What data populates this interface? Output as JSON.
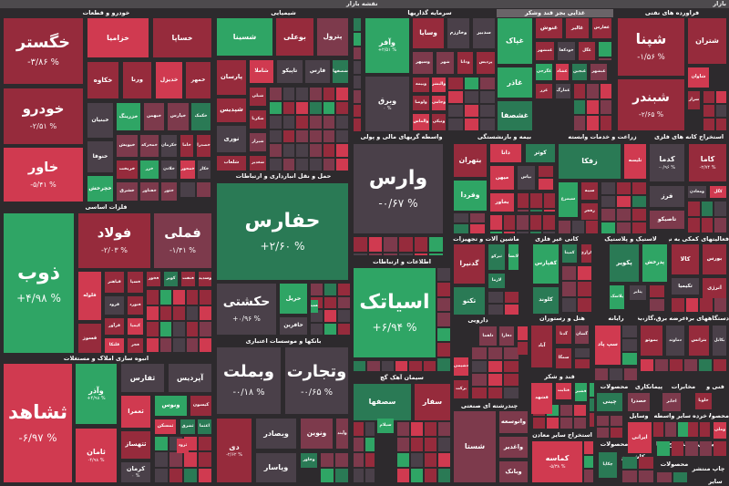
{
  "header": {
    "title": "نقشه بازار",
    "right_label": "بازار"
  },
  "tones": {
    "red": "#d03a50",
    "darkred": "#962b3c",
    "mauve": "#7d3a4c",
    "gray": "#4a4049",
    "green": "#2fa565",
    "dkgreen": "#2a7a55"
  },
  "sectors": [
    {
      "name": "خودرو و قطعات"
    },
    {
      "name": "شیمیایی"
    },
    {
      "name": "سرمایه گذاریها"
    },
    {
      "name": "غذایی بجز قند وشکر"
    },
    {
      "name": "فراورده های نفتی"
    },
    {
      "name": "حمل و نقل انبارداری و ارتباطات"
    },
    {
      "name": "فلزات اساسی"
    },
    {
      "name": "واسطه گریهای مالی و پولی"
    },
    {
      "name": "بیمه و بازنشستگی"
    },
    {
      "name": "زراعت و خدمات وابسته"
    },
    {
      "name": "استخراج کانه های فلزی"
    },
    {
      "name": "انبوه سازی املاک و مستغلات"
    },
    {
      "name": "بانکها و موسسات اعتباری"
    },
    {
      "name": "اطلاعات و ارتباطات"
    },
    {
      "name": "ماشین آلات و تجهیزات"
    },
    {
      "name": "کانی غیر فلزی"
    },
    {
      "name": "لاستیک و پلاستیک"
    },
    {
      "name": "فعالیتهای کمکی به نهاد"
    },
    {
      "name": "سیمان آهک گچ"
    },
    {
      "name": "دارویی"
    },
    {
      "name": "هتل و رستوران"
    },
    {
      "name": "رایانه"
    },
    {
      "name": "عرضه برق،گاز،بخار"
    },
    {
      "name": "دستگاههای برقی"
    },
    {
      "name": "چندرشته ای صنعتی"
    },
    {
      "name": "قند و شکر"
    },
    {
      "name": "استخراج سایر معادن"
    },
    {
      "name": "محصولات"
    },
    {
      "name": "پیمانکاری"
    },
    {
      "name": "مخابرات"
    },
    {
      "name": "فنی و"
    },
    {
      "name": "وسایل"
    },
    {
      "name": "سایر واسطه"
    },
    {
      "name": "خرده"
    },
    {
      "name": "محصولا"
    },
    {
      "name": "استخراج زغال"
    },
    {
      "name": "محصولات"
    },
    {
      "name": "کاشی و"
    },
    {
      "name": "محصولات"
    },
    {
      "name": "فعالیتهای"
    },
    {
      "name": "چاپ منتشر"
    },
    {
      "name": "سایر"
    }
  ],
  "tiles": [
    {
      "name": "خگستر",
      "change": "-۳/۸۶ %",
      "tone": "darkred"
    },
    {
      "name": "خودرو",
      "change": "-۲/۵۱ %",
      "tone": "darkred"
    },
    {
      "name": "خاور",
      "change": "-۵/۴۱ %",
      "tone": "red"
    },
    {
      "name": "خزامیا",
      "change": "",
      "tone": "red"
    },
    {
      "name": "خساپا",
      "change": "",
      "tone": "darkred"
    },
    {
      "name": "خکاوه",
      "change": "",
      "tone": "darkred"
    },
    {
      "name": "ورنا",
      "change": "",
      "tone": "darkred"
    },
    {
      "name": "خدیزل",
      "change": "",
      "tone": "red"
    },
    {
      "name": "خمهر",
      "change": "",
      "tone": "darkred"
    },
    {
      "name": "خبنیان",
      "change": "",
      "tone": "gray"
    },
    {
      "name": "خزرینگ",
      "change": "",
      "tone": "green"
    },
    {
      "name": "خبهمن",
      "change": "",
      "tone": "mauve"
    },
    {
      "name": "خپارس",
      "change": "",
      "tone": "mauve"
    },
    {
      "name": "خکمک",
      "change": "",
      "tone": "dkgreen"
    },
    {
      "name": "خنوفا",
      "change": "",
      "tone": "gray"
    },
    {
      "name": "خپویش",
      "change": "",
      "tone": "mauve"
    },
    {
      "name": "خمحرکه",
      "change": "",
      "tone": "mauve"
    },
    {
      "name": "خکرمان",
      "change": "",
      "tone": "gray"
    },
    {
      "name": "خاما",
      "change": "",
      "tone": "darkred"
    },
    {
      "name": "خصدرا",
      "change": "",
      "tone": "darkred"
    },
    {
      "name": "خریخت",
      "change": "",
      "tone": "darkred"
    },
    {
      "name": "خزر",
      "change": "",
      "tone": "green"
    },
    {
      "name": "خلادن",
      "change": "",
      "tone": "gray"
    },
    {
      "name": "خمحور",
      "change": "",
      "tone": "red"
    },
    {
      "name": "خکار",
      "change": "",
      "tone": "gray"
    },
    {
      "name": "خچرخش",
      "change": "",
      "tone": "green"
    },
    {
      "name": "خشرق",
      "change": "",
      "tone": "mauve"
    },
    {
      "name": "خفناور",
      "change": "",
      "tone": "mauve"
    },
    {
      "name": "ختور",
      "change": "",
      "tone": "mauve"
    },
    {
      "name": "شسینا",
      "change": "",
      "tone": "green"
    },
    {
      "name": "بوعلی",
      "change": "",
      "tone": "darkred"
    },
    {
      "name": "پترول",
      "change": "",
      "tone": "mauve"
    },
    {
      "name": "شصفها",
      "change": "",
      "tone": "dkgreen"
    },
    {
      "name": "پارسان",
      "change": "",
      "tone": "darkred"
    },
    {
      "name": "شاملا",
      "change": "",
      "tone": "red"
    },
    {
      "name": "تاپیکو",
      "change": "",
      "tone": "gray"
    },
    {
      "name": "فارس",
      "change": "",
      "tone": "gray"
    },
    {
      "name": "شپدیس",
      "change": "",
      "tone": "darkred"
    },
    {
      "name": "شبلی",
      "change": "",
      "tone": "darkred"
    },
    {
      "name": "شکربا",
      "change": "",
      "tone": "darkred"
    },
    {
      "name": "نوری",
      "change": "",
      "tone": "gray"
    },
    {
      "name": "شیراز",
      "change": "",
      "tone": "mauve"
    },
    {
      "name": "شلعاب",
      "change": "",
      "tone": "darkred"
    },
    {
      "name": "شغدیر",
      "change": "",
      "tone": "darkred"
    },
    {
      "name": "حفارس",
      "change": "+۲/۶۰ %",
      "tone": "dkgreen"
    },
    {
      "name": "حکشتی",
      "change": "+۰/۹۶ %",
      "tone": "gray"
    },
    {
      "name": "حریل",
      "change": "",
      "tone": "green"
    },
    {
      "name": "حافرین",
      "change": "",
      "tone": "gray"
    },
    {
      "name": "حسینا",
      "change": "",
      "tone": "green"
    },
    {
      "name": "وآفر",
      "change": "+۲/۵۱ %",
      "tone": "green"
    },
    {
      "name": "وبرق",
      "change": "۰ %",
      "tone": "gray"
    },
    {
      "name": "وسایا",
      "change": "",
      "tone": "darkred"
    },
    {
      "name": "وخارزم",
      "change": "",
      "tone": "gray"
    },
    {
      "name": "سدبیر",
      "change": "",
      "tone": "gray"
    },
    {
      "name": "وسپهر",
      "change": "",
      "tone": "mauve"
    },
    {
      "name": "شهر",
      "change": "",
      "tone": "mauve"
    },
    {
      "name": "ودانا",
      "change": "",
      "tone": "darkred"
    },
    {
      "name": "پردیس",
      "change": "",
      "tone": "darkred"
    },
    {
      "name": "وبیمه",
      "change": "",
      "tone": "darkred"
    },
    {
      "name": "والبشر",
      "change": "",
      "tone": "red"
    },
    {
      "name": "ولوصا",
      "change": "",
      "tone": "darkred"
    },
    {
      "name": "وجامی",
      "change": "",
      "tone": "red"
    },
    {
      "name": "والماس",
      "change": "",
      "tone": "red"
    },
    {
      "name": "ونیکی",
      "change": "",
      "tone": "darkred"
    },
    {
      "name": "غپاک",
      "change": "",
      "tone": "green"
    },
    {
      "name": "غاذر",
      "change": "",
      "tone": "green"
    },
    {
      "name": "غشصفا",
      "change": "",
      "tone": "dkgreen"
    },
    {
      "name": "غنوش",
      "change": "",
      "tone": "darkred"
    },
    {
      "name": "غالبر",
      "change": "",
      "tone": "darkred"
    },
    {
      "name": "غفارس",
      "change": "",
      "tone": "darkred"
    },
    {
      "name": "غمشهر",
      "change": "",
      "tone": "darkred"
    },
    {
      "name": "خودکفا",
      "change": "",
      "tone": "gray"
    },
    {
      "name": "غگل",
      "change": "",
      "tone": "darkred"
    },
    {
      "name": "غگرجی",
      "change": "",
      "tone": "green"
    },
    {
      "name": "غشاد",
      "change": "",
      "tone": "red"
    },
    {
      "name": "غبجین",
      "change": "",
      "tone": "dkgreen"
    },
    {
      "name": "غبشهر",
      "change": "",
      "tone": "mauve"
    },
    {
      "name": "غزر",
      "change": "",
      "tone": "darkred"
    },
    {
      "name": "غمارگ",
      "change": "",
      "tone": "gray"
    },
    {
      "name": "شپنا",
      "change": "-۱/۵۶ %",
      "tone": "darkred"
    },
    {
      "name": "شبندر",
      "change": "-۲/۶۵ %",
      "tone": "darkred"
    },
    {
      "name": "شتران",
      "change": "",
      "tone": "darkred"
    },
    {
      "name": "شاوان",
      "change": "",
      "tone": "red"
    },
    {
      "name": "شراز",
      "change": "",
      "tone": "darkred"
    },
    {
      "name": "وارس",
      "change": "-۰/۶۷ %",
      "tone": "gray"
    },
    {
      "name": "بتهران",
      "change": "",
      "tone": "darkred"
    },
    {
      "name": "دانا",
      "change": "",
      "tone": "red"
    },
    {
      "name": "کوثر",
      "change": "",
      "tone": "dkgreen"
    },
    {
      "name": "میهن",
      "change": "",
      "tone": "red"
    },
    {
      "name": "بپاس",
      "change": "",
      "tone": "gray"
    },
    {
      "name": "وفردا",
      "change": "",
      "tone": "green"
    },
    {
      "name": "بخاور",
      "change": "",
      "tone": "red"
    },
    {
      "name": "زفکا",
      "change": "",
      "tone": "dkgreen"
    },
    {
      "name": "تلیسه",
      "change": "",
      "tone": "red"
    },
    {
      "name": "سیمرغ",
      "change": "",
      "tone": "green"
    },
    {
      "name": "سیبه",
      "change": "",
      "tone": "darkred"
    },
    {
      "name": "زفجر",
      "change": "",
      "tone": "darkred"
    },
    {
      "name": "کدما",
      "change": "-۰/۹۶ %",
      "tone": "gray"
    },
    {
      "name": "کاما",
      "change": "-۲/۷۴ %",
      "tone": "darkred"
    },
    {
      "name": "فرز",
      "change": "",
      "tone": "gray"
    },
    {
      "name": "ومعادن",
      "change": "",
      "tone": "gray"
    },
    {
      "name": "کگل",
      "change": "",
      "tone": "red"
    },
    {
      "name": "تاصیکو",
      "change": "",
      "tone": "mauve"
    },
    {
      "name": "ذوب",
      "change": "+۴/۹۸ %",
      "tone": "green"
    },
    {
      "name": "فولاد",
      "change": "-۲/۰۳ %",
      "tone": "darkred"
    },
    {
      "name": "فملی",
      "change": "-۱/۴۱ %",
      "tone": "mauve"
    },
    {
      "name": "فلوله",
      "change": "",
      "tone": "red"
    },
    {
      "name": "فباهنر",
      "change": "",
      "tone": "darkred"
    },
    {
      "name": "فسپا",
      "change": "",
      "tone": "darkred"
    },
    {
      "name": "فخوز",
      "change": "",
      "tone": "darkred"
    },
    {
      "name": "کویر",
      "change": "",
      "tone": "dkgreen"
    },
    {
      "name": "فنفت",
      "change": "",
      "tone": "darkred"
    },
    {
      "name": "وسدید",
      "change": "",
      "tone": "darkred"
    },
    {
      "name": "فرود",
      "change": "",
      "tone": "gray"
    },
    {
      "name": "فنورد",
      "change": "",
      "tone": "darkred"
    },
    {
      "name": "فسوز",
      "change": "",
      "tone": "darkred"
    },
    {
      "name": "فرآور",
      "change": "",
      "tone": "darkred"
    },
    {
      "name": "کیمیا",
      "change": "",
      "tone": "red"
    },
    {
      "name": "فلنکا",
      "change": "",
      "tone": "red"
    },
    {
      "name": "فجر",
      "change": "",
      "tone": "darkred"
    },
    {
      "name": "ثشاهد",
      "change": "-۶/۹۷ %",
      "tone": "red"
    },
    {
      "name": "وآذر",
      "change": "+۴/۹۸ %",
      "tone": "green"
    },
    {
      "name": "ثامان",
      "change": "-۴/۹۸ %",
      "tone": "red"
    },
    {
      "name": "ثفارس",
      "change": "",
      "tone": "gray"
    },
    {
      "name": "آپردیس",
      "change": "",
      "tone": "gray"
    },
    {
      "name": "ثعمرا",
      "change": "",
      "tone": "red"
    },
    {
      "name": "ونوس",
      "change": "",
      "tone": "green"
    },
    {
      "name": "کیسون",
      "change": "",
      "tone": "darkred"
    },
    {
      "name": "ثمسکن",
      "change": "",
      "tone": "red"
    },
    {
      "name": "ثشرق",
      "change": "",
      "tone": "dkgreen"
    },
    {
      "name": "اعتما",
      "change": "",
      "tone": "dkgreen"
    },
    {
      "name": "ثتهساز",
      "change": "",
      "tone": "darkred"
    },
    {
      "name": "ثرود",
      "change": "",
      "tone": "red"
    },
    {
      "name": "کرمان",
      "change": "۰ %",
      "tone": "gray"
    },
    {
      "name": "وبملت",
      "change": "-۰/۱۸ %",
      "tone": "gray"
    },
    {
      "name": "وتجارت",
      "change": "-۰/۶۵ %",
      "tone": "gray"
    },
    {
      "name": "دی",
      "change": "-۲/۶۲ %",
      "tone": "darkred"
    },
    {
      "name": "وبصادر",
      "change": "",
      "tone": "gray"
    },
    {
      "name": "ونوین",
      "change": "",
      "tone": "mauve"
    },
    {
      "name": "وآیند",
      "change": "",
      "tone": "mauve"
    },
    {
      "name": "وپاسار",
      "change": "",
      "tone": "gray"
    },
    {
      "name": "وخاور",
      "change": "",
      "tone": "dkgreen"
    },
    {
      "name": "اسیاتک",
      "change": "+۶/۹۴ %",
      "tone": "green"
    },
    {
      "name": "سصفها",
      "change": "",
      "tone": "dkgreen"
    },
    {
      "name": "سفار",
      "change": "",
      "tone": "darkred"
    },
    {
      "name": "سیلام",
      "change": "",
      "tone": "green"
    },
    {
      "name": "گدنیرا",
      "change": "",
      "tone": "darkred"
    },
    {
      "name": "تیرکو",
      "change": "",
      "tone": "dkgreen"
    },
    {
      "name": "لابسا",
      "change": "",
      "tone": "green"
    },
    {
      "name": "لازما",
      "change": "",
      "tone": "dkgreen"
    },
    {
      "name": "تکنو",
      "change": "",
      "tone": "dkgreen"
    },
    {
      "name": "کفپارس",
      "change": "",
      "tone": "green"
    },
    {
      "name": "کلوند",
      "change": "",
      "tone": "dkgreen"
    },
    {
      "name": "کمینا",
      "change": "",
      "tone": "dkgreen"
    },
    {
      "name": "کرازی",
      "change": "",
      "tone": "darkred"
    },
    {
      "name": "پکویر",
      "change": "",
      "tone": "dkgreen"
    },
    {
      "name": "پدرخش",
      "change": "",
      "tone": "green"
    },
    {
      "name": "پلاسک",
      "change": "",
      "tone": "green"
    },
    {
      "name": "پتایر",
      "change": "",
      "tone": "gray"
    },
    {
      "name": "کالا",
      "change": "",
      "tone": "darkred"
    },
    {
      "name": "بورس",
      "change": "",
      "tone": "darkred"
    },
    {
      "name": "تکیمیا",
      "change": "",
      "tone": "gray"
    },
    {
      "name": "انرژی",
      "change": "",
      "tone": "darkred"
    },
    {
      "name": "دلقما",
      "change": "",
      "tone": "mauve"
    },
    {
      "name": "دفارا",
      "change": "",
      "tone": "mauve"
    },
    {
      "name": "دشیمی",
      "change": "",
      "tone": "red"
    },
    {
      "name": "برکت",
      "change": "",
      "tone": "darkred"
    },
    {
      "name": "آباد",
      "change": "",
      "tone": "darkred"
    },
    {
      "name": "گدنا",
      "change": "",
      "tone": "darkred"
    },
    {
      "name": "گشان",
      "change": "",
      "tone": "mauve"
    },
    {
      "name": "سمگا",
      "change": "",
      "tone": "darkred"
    },
    {
      "name": "سپ پاد",
      "change": "",
      "tone": "red"
    },
    {
      "name": "بموتو",
      "change": "",
      "tone": "darkred"
    },
    {
      "name": "دماوند",
      "change": "",
      "tone": "gray"
    },
    {
      "name": "بترانس",
      "change": "",
      "tone": "darkred"
    },
    {
      "name": "بکابل",
      "change": "",
      "tone": "gray"
    },
    {
      "name": "قشهد",
      "change": "",
      "tone": "red"
    },
    {
      "name": "قثابت",
      "change": "",
      "tone": "red"
    },
    {
      "name": "قشیر",
      "change": "",
      "tone": "green"
    },
    {
      "name": "شستا",
      "change": "",
      "tone": "mauve"
    },
    {
      "name": "واتوسعه",
      "change": "",
      "tone": "mauve"
    },
    {
      "name": "واغدیر",
      "change": "",
      "tone": "mauve"
    },
    {
      "name": "وبانک",
      "change": "",
      "tone": "mauve"
    },
    {
      "name": "کماسه",
      "change": "-۵/۳۸ %",
      "tone": "red"
    },
    {
      "name": "چینی",
      "change": "",
      "tone": "dkgreen"
    },
    {
      "name": "خصدرا",
      "change": "",
      "tone": "mauve"
    },
    {
      "name": "اخابر",
      "change": "",
      "tone": "mauve"
    },
    {
      "name": "خلوبا",
      "change": "",
      "tone": "darkred"
    },
    {
      "name": "ایرانی",
      "change": "",
      "tone": "red"
    },
    {
      "name": "وملی",
      "change": "",
      "tone": "red"
    },
    {
      "name": "چکاپا",
      "change": "",
      "tone": "dkgreen"
    }
  ]
}
